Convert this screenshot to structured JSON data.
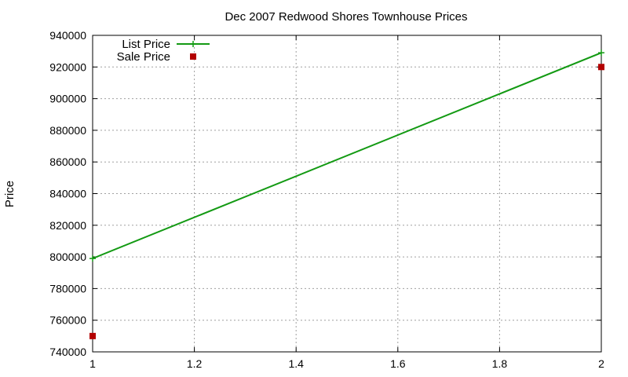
{
  "chart_data": {
    "type": "line",
    "title": "Dec 2007 Redwood Shores Townhouse Prices",
    "xlabel": "",
    "ylabel": "Price",
    "xlim": [
      1,
      2
    ],
    "ylim": [
      740000,
      940000
    ],
    "x_ticks": [
      "1",
      "1.2",
      "1.4",
      "1.6",
      "1.8",
      "2"
    ],
    "y_ticks": [
      "740000",
      "760000",
      "780000",
      "800000",
      "820000",
      "840000",
      "860000",
      "880000",
      "900000",
      "920000",
      "940000"
    ],
    "grid": true,
    "legend": "top-left",
    "series": [
      {
        "name": "List Price",
        "style": "linespoints",
        "color": "#139a13",
        "marker": "plus",
        "points": [
          {
            "x": 1,
            "y": 799000
          },
          {
            "x": 2,
            "y": 929000
          }
        ]
      },
      {
        "name": "Sale Price",
        "style": "points",
        "color": "#b30000",
        "marker": "square",
        "points": [
          {
            "x": 1,
            "y": 750000
          },
          {
            "x": 2,
            "y": 920000
          }
        ]
      }
    ]
  }
}
